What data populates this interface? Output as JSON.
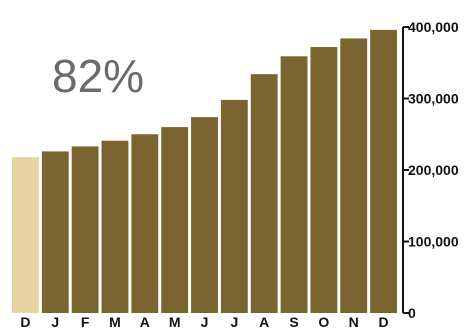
{
  "chart_data": {
    "type": "bar",
    "categories": [
      "D",
      "J",
      "F",
      "M",
      "A",
      "M",
      "J",
      "J",
      "A",
      "S",
      "O",
      "N",
      "D"
    ],
    "values": [
      218000,
      226000,
      233000,
      241000,
      250000,
      260000,
      274000,
      298000,
      334000,
      359000,
      372000,
      384000,
      396000
    ],
    "ylim": [
      0,
      400000
    ],
    "yticks": [
      "0",
      "100,000",
      "200,000",
      "300,000",
      "400,000"
    ],
    "ytick_values": [
      0,
      100000,
      200000,
      300000,
      400000
    ],
    "annotation": "82%",
    "highlight_index": 0,
    "colors": {
      "bar": "#7a6430",
      "highlight": "#e6d4a3",
      "axis": "#111111"
    },
    "grid": false,
    "legend": "none"
  }
}
